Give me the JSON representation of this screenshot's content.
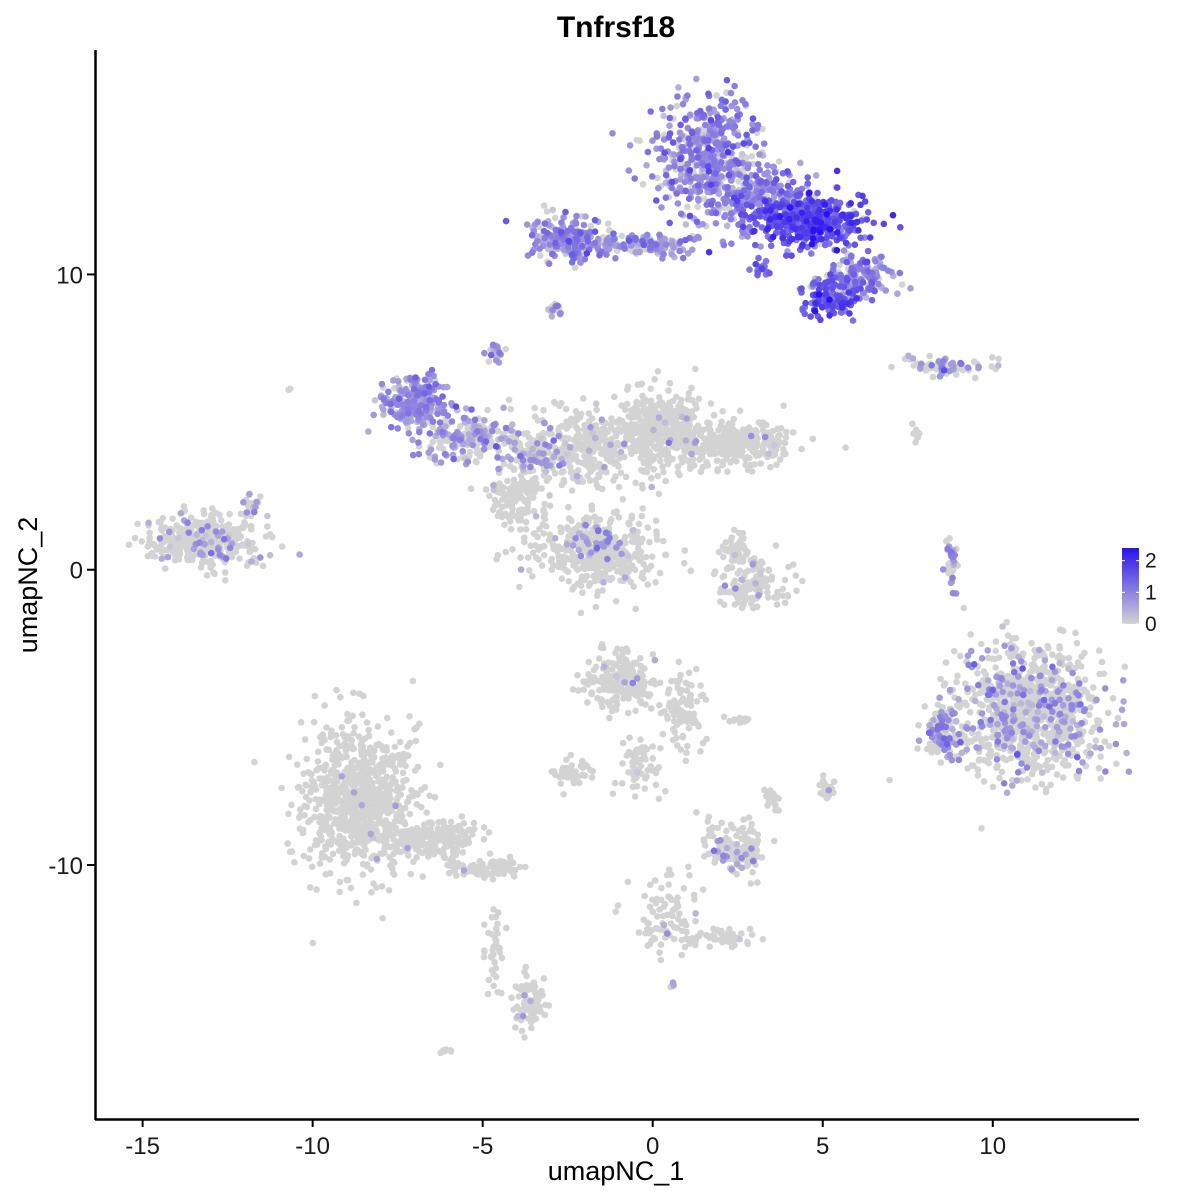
{
  "chart_data": {
    "type": "scatter",
    "title": "Tnfrsf18",
    "xlabel": "umapNC_1",
    "ylabel": "umapNC_2",
    "xlim": [
      -16.4,
      14.3
    ],
    "ylim": [
      -18.6,
      17.6
    ],
    "x_ticks": [
      {
        "value": -15,
        "label": "-15"
      },
      {
        "value": -10,
        "label": "-10"
      },
      {
        "value": -5,
        "label": "-5"
      },
      {
        "value": 0,
        "label": "0"
      },
      {
        "value": 5,
        "label": "5"
      },
      {
        "value": 10,
        "label": "10"
      }
    ],
    "y_ticks": [
      {
        "value": -10,
        "label": "-10"
      },
      {
        "value": 0,
        "label": "0"
      },
      {
        "value": 10,
        "label": "10"
      }
    ],
    "grid": false,
    "color_scale": {
      "low_color": "#d3d3d3",
      "high_color": "#2a12f0",
      "min": 0,
      "max": 2.4,
      "ticks": [
        {
          "value": 0,
          "label": "0"
        },
        {
          "value": 1,
          "label": "1"
        },
        {
          "value": 2,
          "label": "2"
        }
      ],
      "legend_position": "right"
    },
    "clusters": [
      {
        "cx": 1.6,
        "cy": 14.0,
        "sx": 1.1,
        "sy": 1.3,
        "n": 500,
        "mean": 0.9,
        "sd": 0.35,
        "frac": 0.75
      },
      {
        "cx": 4.6,
        "cy": 11.8,
        "sx": 1.1,
        "sy": 0.6,
        "n": 420,
        "mean": 1.5,
        "sd": 0.4,
        "frac": 0.95
      },
      {
        "cx": 3.1,
        "cy": 12.6,
        "sx": 1.0,
        "sy": 0.7,
        "n": 250,
        "mean": 1.0,
        "sd": 0.35,
        "frac": 0.85
      },
      {
        "cx": -2.6,
        "cy": 11.2,
        "sx": 0.7,
        "sy": 0.5,
        "n": 200,
        "mean": 0.9,
        "sd": 0.35,
        "frac": 0.7
      },
      {
        "cx": -0.4,
        "cy": 11.0,
        "sx": 1.1,
        "sy": 0.25,
        "n": 160,
        "mean": 0.8,
        "sd": 0.3,
        "frac": 0.6
      },
      {
        "cx": 5.2,
        "cy": 9.2,
        "sx": 0.5,
        "sy": 0.4,
        "n": 140,
        "mean": 1.4,
        "sd": 0.4,
        "frac": 0.95
      },
      {
        "cx": 6.0,
        "cy": 9.9,
        "sx": 0.7,
        "sy": 0.5,
        "n": 160,
        "mean": 0.9,
        "sd": 0.35,
        "frac": 0.8
      },
      {
        "cx": 3.2,
        "cy": 10.2,
        "sx": 0.2,
        "sy": 0.2,
        "n": 20,
        "mean": 1.3,
        "sd": 0.3,
        "frac": 0.9
      },
      {
        "cx": -7.0,
        "cy": 5.6,
        "sx": 0.6,
        "sy": 0.6,
        "n": 230,
        "mean": 0.8,
        "sd": 0.3,
        "frac": 0.8
      },
      {
        "cx": -5.3,
        "cy": 4.5,
        "sx": 1.1,
        "sy": 0.6,
        "n": 200,
        "mean": 0.7,
        "sd": 0.3,
        "frac": 0.45
      },
      {
        "cx": -3.5,
        "cy": 4.0,
        "sx": 0.6,
        "sy": 0.5,
        "n": 110,
        "mean": 0.7,
        "sd": 0.3,
        "frac": 0.3
      },
      {
        "cx": -4.6,
        "cy": 7.4,
        "sx": 0.15,
        "sy": 0.2,
        "n": 25,
        "mean": 0.7,
        "sd": 0.3,
        "frac": 0.4
      },
      {
        "cx": -2.9,
        "cy": 8.8,
        "sx": 0.15,
        "sy": 0.15,
        "n": 18,
        "mean": 0.7,
        "sd": 0.3,
        "frac": 0.4
      },
      {
        "cx": -1.8,
        "cy": 4.2,
        "sx": 1.2,
        "sy": 0.9,
        "n": 320,
        "mean": 0.4,
        "sd": 0.3,
        "frac": 0.05
      },
      {
        "cx": -1.6,
        "cy": 0.6,
        "sx": 1.3,
        "sy": 0.8,
        "n": 420,
        "mean": 0.5,
        "sd": 0.3,
        "frac": 0.03
      },
      {
        "cx": 0.3,
        "cy": 4.8,
        "sx": 0.8,
        "sy": 0.9,
        "n": 320,
        "mean": 0.5,
        "sd": 0.3,
        "frac": 0.03
      },
      {
        "cx": 2.3,
        "cy": 4.3,
        "sx": 1.3,
        "sy": 0.5,
        "n": 330,
        "mean": 0.5,
        "sd": 0.3,
        "frac": 0.03
      },
      {
        "cx": -4.0,
        "cy": 2.5,
        "sx": 0.6,
        "sy": 0.7,
        "n": 130,
        "mean": 0.4,
        "sd": 0.3,
        "frac": 0.03
      },
      {
        "cx": -1.6,
        "cy": 1.0,
        "sx": 0.4,
        "sy": 0.4,
        "n": 45,
        "mean": 0.7,
        "sd": 0.3,
        "frac": 0.5
      },
      {
        "cx": -13.2,
        "cy": 1.0,
        "sx": 1.1,
        "sy": 0.6,
        "n": 360,
        "mean": 0.6,
        "sd": 0.3,
        "frac": 0.1
      },
      {
        "cx": -11.8,
        "cy": 2.1,
        "sx": 0.25,
        "sy": 0.3,
        "n": 30,
        "mean": 0.6,
        "sd": 0.3,
        "frac": 0.2
      },
      {
        "cx": 3.0,
        "cy": -0.5,
        "sx": 0.7,
        "sy": 0.5,
        "n": 130,
        "mean": 0.5,
        "sd": 0.3,
        "frac": 0.05
      },
      {
        "cx": 2.5,
        "cy": 0.7,
        "sx": 0.3,
        "sy": 0.4,
        "n": 40,
        "mean": 0.5,
        "sd": 0.3,
        "frac": 0.05
      },
      {
        "cx": 8.8,
        "cy": 0.3,
        "sx": 0.12,
        "sy": 0.6,
        "n": 45,
        "mean": 0.8,
        "sd": 0.3,
        "frac": 0.4
      },
      {
        "cx": 8.5,
        "cy": 6.9,
        "sx": 0.9,
        "sy": 0.2,
        "n": 70,
        "mean": 0.7,
        "sd": 0.3,
        "frac": 0.3
      },
      {
        "cx": 11.0,
        "cy": -4.8,
        "sx": 1.4,
        "sy": 1.4,
        "n": 1000,
        "mean": 0.7,
        "sd": 0.3,
        "frac": 0.2
      },
      {
        "cx": 8.6,
        "cy": -5.5,
        "sx": 0.4,
        "sy": 0.6,
        "n": 110,
        "mean": 0.8,
        "sd": 0.3,
        "frac": 0.45
      },
      {
        "cx": -0.9,
        "cy": -3.8,
        "sx": 0.7,
        "sy": 0.6,
        "n": 200,
        "mean": 0.5,
        "sd": 0.3,
        "frac": 0.03
      },
      {
        "cx": 0.9,
        "cy": -4.8,
        "sx": 0.4,
        "sy": 0.9,
        "n": 90,
        "mean": 0.5,
        "sd": 0.3,
        "frac": 0.02
      },
      {
        "cx": -0.4,
        "cy": -6.7,
        "sx": 0.4,
        "sy": 0.7,
        "n": 60,
        "mean": 0.5,
        "sd": 0.3,
        "frac": 0.02
      },
      {
        "cx": -2.4,
        "cy": -6.9,
        "sx": 0.4,
        "sy": 0.3,
        "n": 45,
        "mean": 0.5,
        "sd": 0.3,
        "frac": 0.03
      },
      {
        "cx": -8.6,
        "cy": -7.7,
        "sx": 1.1,
        "sy": 1.8,
        "n": 800,
        "mean": 0.5,
        "sd": 0.3,
        "frac": 0.01
      },
      {
        "cx": -6.6,
        "cy": -9.1,
        "sx": 1.0,
        "sy": 0.4,
        "n": 220,
        "mean": 0.5,
        "sd": 0.3,
        "frac": 0.01
      },
      {
        "cx": -5.0,
        "cy": -10.1,
        "sx": 0.8,
        "sy": 0.2,
        "n": 80,
        "mean": 0.5,
        "sd": 0.3,
        "frac": 0.01
      },
      {
        "cx": -4.7,
        "cy": -12.6,
        "sx": 0.25,
        "sy": 1.2,
        "n": 40,
        "mean": 0.5,
        "sd": 0.3,
        "frac": 0.02
      },
      {
        "cx": -3.6,
        "cy": -14.6,
        "sx": 0.3,
        "sy": 0.6,
        "n": 80,
        "mean": 0.5,
        "sd": 0.3,
        "frac": 0.05
      },
      {
        "cx": 2.4,
        "cy": -9.4,
        "sx": 0.6,
        "sy": 0.6,
        "n": 130,
        "mean": 0.6,
        "sd": 0.3,
        "frac": 0.1
      },
      {
        "cx": 0.4,
        "cy": -11.8,
        "sx": 0.7,
        "sy": 0.9,
        "n": 90,
        "mean": 0.5,
        "sd": 0.3,
        "frac": 0.03
      },
      {
        "cx": 2.2,
        "cy": -12.5,
        "sx": 0.6,
        "sy": 0.2,
        "n": 45,
        "mean": 0.5,
        "sd": 0.3,
        "frac": 0.02
      },
      {
        "cx": 5.1,
        "cy": -7.4,
        "sx": 0.15,
        "sy": 0.2,
        "n": 30,
        "mean": 0.5,
        "sd": 0.3,
        "frac": 0.02
      },
      {
        "cx": 3.5,
        "cy": -7.8,
        "sx": 0.15,
        "sy": 0.3,
        "n": 15,
        "mean": 0.5,
        "sd": 0.3,
        "frac": 0.05
      },
      {
        "cx": 2.6,
        "cy": -5.1,
        "sx": 0.3,
        "sy": 0.08,
        "n": 12,
        "mean": 0.5,
        "sd": 0.3,
        "frac": 0.05
      },
      {
        "cx": 7.7,
        "cy": 4.6,
        "sx": 0.15,
        "sy": 0.2,
        "n": 8,
        "mean": 0.5,
        "sd": 0.3,
        "frac": 0.05
      },
      {
        "cx": -10.7,
        "cy": 6.1,
        "sx": 0.05,
        "sy": 0.05,
        "n": 3,
        "mean": 0.5,
        "sd": 0.3,
        "frac": 0.0
      },
      {
        "cx": -6.1,
        "cy": -16.3,
        "sx": 0.1,
        "sy": 0.08,
        "n": 6,
        "mean": 0.5,
        "sd": 0.3,
        "frac": 0.0
      },
      {
        "cx": 0.6,
        "cy": -14.1,
        "sx": 0.08,
        "sy": 0.08,
        "n": 5,
        "mean": 0.9,
        "sd": 0.3,
        "frac": 0.5
      }
    ]
  }
}
